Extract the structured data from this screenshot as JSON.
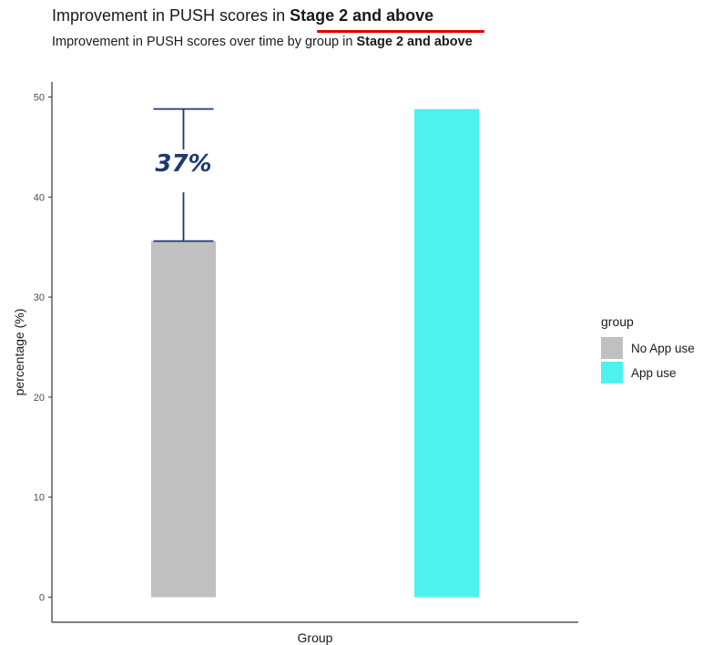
{
  "header": {
    "title_prefix": "Improvement in PUSH scores in",
    "title_emph": "Stage 2 and above",
    "subtitle_prefix": "Improvement in PUSH scores over time by group in",
    "subtitle_emph": "Stage 2 and above"
  },
  "annotation": {
    "label": "37%"
  },
  "legend": {
    "title": "group",
    "items": [
      {
        "label": "No App use",
        "color": "#c0c0c0"
      },
      {
        "label": "App use",
        "color": "#4df2f0"
      }
    ]
  },
  "colors": {
    "accent_underline": "#e00000",
    "annotation": "#1f3a6e"
  },
  "chart_data": {
    "type": "bar",
    "categories": [
      "No App use",
      "App use"
    ],
    "values": [
      35.6,
      48.8
    ],
    "colors": [
      "#c0c0c0",
      "#4df2f0"
    ],
    "xlabel": "Group",
    "ylabel": "percentage (%)",
    "ylim": [
      -2.5,
      51.5
    ],
    "yticks": [
      0,
      10,
      20,
      30,
      40,
      50
    ],
    "show_x_tick_labels": false,
    "grid": false,
    "legend_position": "right",
    "annotations": [
      {
        "type": "bracket",
        "category": "No App use",
        "from": 35.6,
        "to": 48.8,
        "label": "37%"
      }
    ]
  }
}
